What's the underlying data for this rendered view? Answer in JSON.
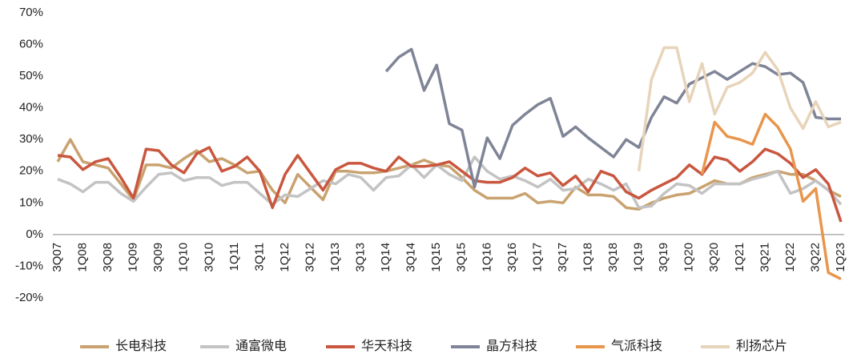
{
  "chart_data": {
    "type": "line",
    "categories": [
      "3Q07",
      null,
      "1Q08",
      null,
      "3Q08",
      null,
      "1Q09",
      null,
      "3Q09",
      null,
      "1Q10",
      null,
      "3Q10",
      null,
      "1Q11",
      null,
      "3Q11",
      null,
      "1Q12",
      null,
      "3Q12",
      null,
      "1Q13",
      null,
      "3Q13",
      null,
      "1Q14",
      null,
      "3Q14",
      null,
      "1Q15",
      null,
      "3Q15",
      null,
      "1Q16",
      null,
      "3Q16",
      null,
      "1Q17",
      null,
      "3Q17",
      null,
      "1Q18",
      null,
      "3Q18",
      null,
      "1Q19",
      null,
      "3Q19",
      null,
      "1Q20",
      null,
      "3Q20",
      null,
      "1Q21",
      null,
      "3Q21",
      null,
      "1Q22",
      null,
      "3Q22",
      null,
      "1Q23"
    ],
    "ylim": [
      -20,
      70
    ],
    "yticks": [
      {
        "value": -20,
        "label": "-20%"
      },
      {
        "value": -10,
        "label": "-10%"
      },
      {
        "value": 0,
        "label": "0%"
      },
      {
        "value": 10,
        "label": "10%"
      },
      {
        "value": 20,
        "label": "20%"
      },
      {
        "value": 30,
        "label": "30%"
      },
      {
        "value": 40,
        "label": "40%"
      },
      {
        "value": 50,
        "label": "50%"
      },
      {
        "value": 60,
        "label": "60%"
      },
      {
        "value": 70,
        "label": "70%"
      }
    ],
    "grid": false,
    "series": [
      {
        "name": "长电科技",
        "color": "#c9a26f",
        "values": [
          23,
          30,
          23,
          22,
          21,
          16,
          11,
          22,
          22,
          21,
          24,
          26.5,
          23,
          24,
          22,
          19.5,
          20,
          14,
          10,
          19,
          15,
          11,
          20,
          20,
          19.5,
          19.5,
          20,
          21,
          22,
          23.5,
          22,
          21.5,
          18,
          14,
          11.5,
          11.5,
          11.5,
          13,
          10,
          10.5,
          10,
          15,
          12.5,
          12.5,
          12,
          8.5,
          8,
          10,
          11.5,
          12.5,
          13,
          15,
          17,
          16,
          16,
          18,
          19,
          20,
          19,
          19,
          17,
          14,
          12
        ]
      },
      {
        "name": "通富微电",
        "color": "#c3c3c3",
        "values": [
          17.5,
          16,
          13.5,
          16.5,
          16.5,
          13,
          10.5,
          15,
          19,
          19.5,
          17,
          18,
          18,
          15.5,
          16.5,
          16.5,
          13,
          9.5,
          12.5,
          12,
          14.5,
          17,
          16,
          19,
          18,
          14,
          18,
          18.5,
          22,
          18,
          22,
          19,
          17,
          24.5,
          20,
          17.5,
          18.5,
          17,
          15,
          17.5,
          14,
          14.5,
          17.5,
          16,
          14,
          16,
          8.5,
          9,
          13,
          16,
          15.5,
          13,
          16,
          16,
          16,
          17.5,
          18.5,
          20,
          13,
          14.5,
          17,
          14,
          9.5
        ]
      },
      {
        "name": "华天科技",
        "color": "#c9573f",
        "values": [
          25,
          24.5,
          20.5,
          23,
          24,
          18,
          11.5,
          27,
          26.5,
          22,
          19.5,
          25.5,
          27.5,
          20,
          21.5,
          24.5,
          20,
          8.5,
          19,
          25,
          19.5,
          14,
          20.5,
          22.5,
          22.5,
          21,
          20,
          24.5,
          21.5,
          21.5,
          22,
          23,
          20,
          17,
          16.5,
          16.5,
          18,
          21,
          18.5,
          19.5,
          15.5,
          18.5,
          13.5,
          20,
          18.5,
          13.5,
          11.5,
          14,
          16,
          18,
          22,
          19,
          24.5,
          23.5,
          20,
          23,
          27,
          25.5,
          22.5,
          18,
          20.5,
          16,
          4
        ]
      },
      {
        "name": "晶方科技",
        "color": "#7f8497",
        "values": [
          null,
          null,
          null,
          null,
          null,
          null,
          null,
          null,
          null,
          null,
          null,
          null,
          null,
          null,
          null,
          null,
          null,
          null,
          null,
          null,
          null,
          null,
          null,
          null,
          null,
          null,
          51.5,
          56,
          58.5,
          45.5,
          53.5,
          35,
          33,
          15,
          30.5,
          24,
          34.5,
          38,
          41,
          43,
          31,
          34,
          30.5,
          27.5,
          24.5,
          30,
          27.5,
          37,
          43.5,
          41.5,
          47.5,
          49.5,
          51.5,
          49,
          51.5,
          54,
          53,
          50.5,
          51,
          48,
          37,
          36.5,
          36.5
        ]
      },
      {
        "name": "气派科技",
        "color": "#e8964c",
        "values": [
          null,
          null,
          null,
          null,
          null,
          null,
          null,
          null,
          null,
          null,
          null,
          null,
          null,
          null,
          null,
          null,
          null,
          null,
          null,
          null,
          null,
          null,
          null,
          null,
          null,
          null,
          null,
          null,
          null,
          null,
          null,
          null,
          null,
          null,
          null,
          null,
          null,
          null,
          null,
          null,
          null,
          null,
          null,
          null,
          null,
          null,
          null,
          null,
          null,
          null,
          null,
          19,
          35.5,
          31,
          30,
          28.5,
          38,
          34,
          27,
          10.5,
          14.5,
          -12,
          -14
        ]
      },
      {
        "name": "利扬芯片",
        "color": "#e7d4ba",
        "values": [
          null,
          null,
          null,
          null,
          null,
          null,
          null,
          null,
          null,
          null,
          null,
          null,
          null,
          null,
          null,
          null,
          null,
          null,
          null,
          null,
          null,
          null,
          null,
          null,
          null,
          null,
          null,
          null,
          null,
          null,
          null,
          null,
          null,
          null,
          null,
          null,
          null,
          null,
          null,
          null,
          null,
          null,
          null,
          null,
          null,
          null,
          20,
          49,
          59,
          59,
          42,
          54,
          38,
          46.5,
          48,
          51,
          57.5,
          52,
          40,
          33.5,
          42,
          34,
          35.5
        ]
      }
    ]
  }
}
